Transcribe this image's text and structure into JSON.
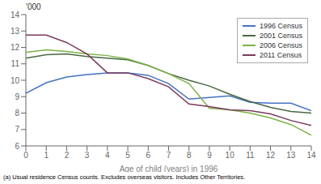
{
  "chart_data": {
    "type": "line",
    "x": [
      0,
      1,
      2,
      3,
      4,
      5,
      6,
      7,
      8,
      9,
      10,
      11,
      12,
      13,
      14
    ],
    "series": [
      {
        "name": "1996 Census",
        "color": "#4472c4",
        "values": [
          9.2,
          9.85,
          10.2,
          10.35,
          10.45,
          10.45,
          10.3,
          9.8,
          8.85,
          8.95,
          9.05,
          8.65,
          8.6,
          8.6,
          8.15
        ]
      },
      {
        "name": "2001 Census",
        "color": "#4a6741",
        "values": [
          11.35,
          11.55,
          11.6,
          11.45,
          11.35,
          11.25,
          10.9,
          10.4,
          10.0,
          9.65,
          9.15,
          8.7,
          8.35,
          8.1,
          8.0
        ]
      },
      {
        "name": "2006 Census",
        "color": "#7cb347",
        "values": [
          11.7,
          11.85,
          11.75,
          11.6,
          11.5,
          11.3,
          10.9,
          10.4,
          9.8,
          8.3,
          8.2,
          8.0,
          7.7,
          7.3,
          6.65
        ]
      },
      {
        "name": "2011 Census",
        "color": "#7b3b5e",
        "values": [
          12.75,
          12.75,
          12.3,
          11.6,
          10.45,
          10.45,
          10.1,
          9.6,
          8.55,
          8.4,
          8.2,
          8.15,
          7.95,
          7.55,
          7.25
        ]
      }
    ],
    "xlabel": "Age of child (years) in 1996",
    "ylabel": "'000",
    "footnote": "(a) Usual residence Census counts.  Excludes overseas visitors.  Includes Other Territories.",
    "xlim": [
      0,
      14
    ],
    "ylim": [
      6,
      14
    ],
    "xticks": [
      0,
      1,
      2,
      3,
      4,
      5,
      6,
      7,
      8,
      9,
      10,
      11,
      12,
      13,
      14
    ],
    "yticks": [
      6,
      7,
      8,
      9,
      10,
      11,
      12,
      13,
      14
    ],
    "legend": "upper right",
    "grid": false
  }
}
